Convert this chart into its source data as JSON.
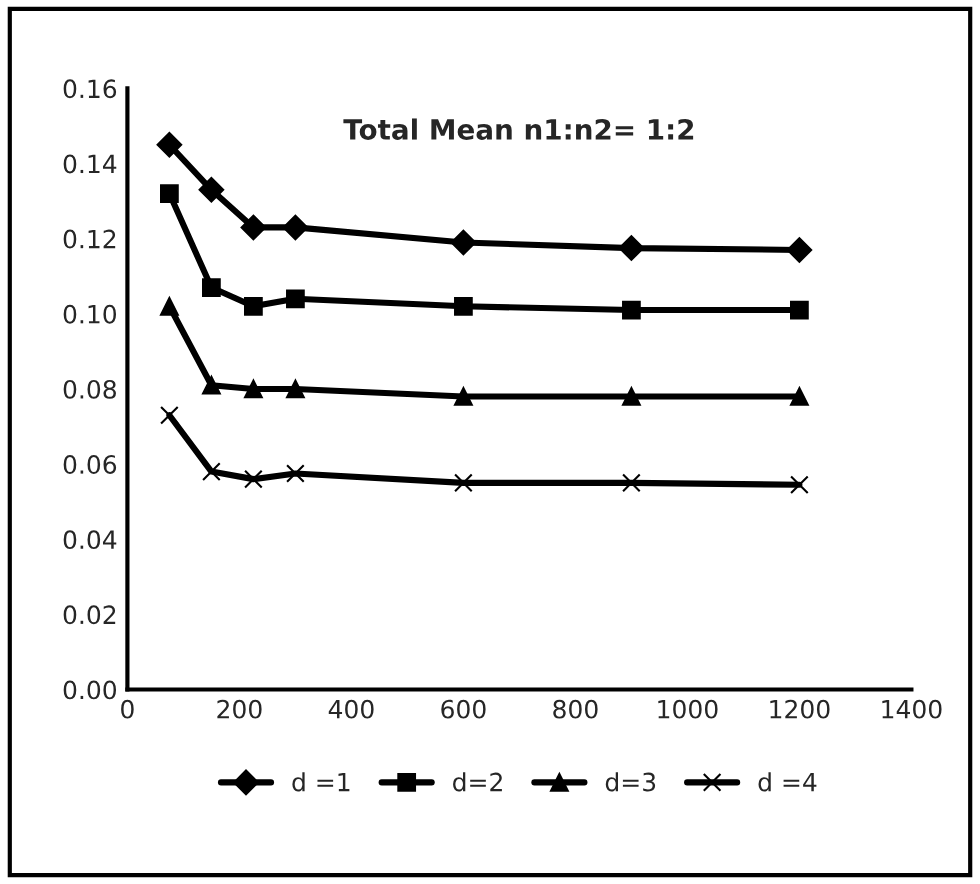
{
  "chart_data": {
    "type": "line",
    "title": "Total Mean n1:n2= 1:2",
    "x": [
      75,
      150,
      225,
      300,
      600,
      900,
      1200
    ],
    "series": [
      {
        "name": "d =1",
        "color": "#000000",
        "marker": "diamond",
        "values": [
          0.145,
          0.133,
          0.123,
          0.123,
          0.119,
          0.1175,
          0.117
        ]
      },
      {
        "name": "d=2",
        "color": "#000000",
        "marker": "square",
        "values": [
          0.132,
          0.107,
          0.102,
          0.104,
          0.102,
          0.101,
          0.101
        ]
      },
      {
        "name": "d=3",
        "color": "#000000",
        "marker": "triangle",
        "values": [
          0.102,
          0.081,
          0.08,
          0.08,
          0.078,
          0.078,
          0.078
        ]
      },
      {
        "name": "d =4",
        "color": "#000000",
        "marker": "cross",
        "values": [
          0.073,
          0.058,
          0.056,
          0.0575,
          0.055,
          0.055,
          0.0545
        ]
      }
    ],
    "xlim": [
      0,
      1400
    ],
    "xticks": [
      0,
      200,
      400,
      600,
      800,
      1000,
      1200,
      1400
    ],
    "ylim": [
      0,
      0.16
    ],
    "yticks": [
      {
        "value": 0,
        "label": "0.00"
      },
      {
        "value": 0.02,
        "label": "0.02"
      },
      {
        "value": 0.04,
        "label": "0.04"
      },
      {
        "value": 0.06,
        "label": "0.06"
      },
      {
        "value": 0.08,
        "label": "0.08"
      },
      {
        "value": 0.1,
        "label": "0.10"
      },
      {
        "value": 0.12,
        "label": "0.12"
      },
      {
        "value": 0.14,
        "label": "0.14"
      },
      {
        "value": 0.16,
        "label": "0.16"
      }
    ],
    "legend": "bottom",
    "grid": false,
    "line_style": "solid"
  }
}
